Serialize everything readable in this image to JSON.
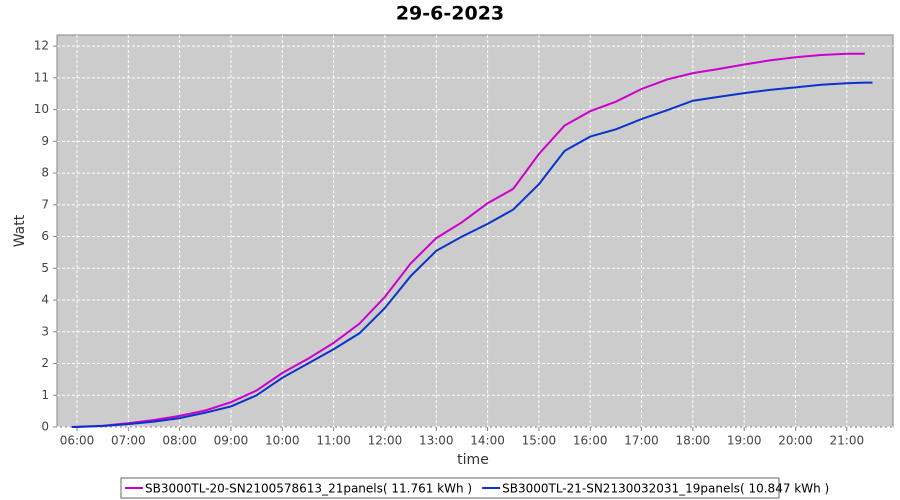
{
  "chart_data": {
    "type": "line",
    "title": "29-6-2023",
    "x_label": "time",
    "y_label": "Watt",
    "x": [
      5.9,
      6.0,
      6.5,
      7.0,
      7.5,
      8.0,
      8.5,
      9.0,
      9.5,
      10.0,
      10.5,
      11.0,
      11.5,
      12.0,
      12.5,
      13.0,
      13.5,
      14.0,
      14.5,
      15.0,
      15.5,
      16.0,
      16.5,
      17.0,
      17.5,
      18.0,
      18.5,
      19.0,
      19.5,
      20.0,
      20.5,
      21.0,
      21.35,
      21.5
    ],
    "series": [
      {
        "name": "SB3000TL-20-SN2100578613_21panels( 11.761 kWh )",
        "color": "#cc00cc",
        "values": [
          0,
          0.01,
          0.04,
          0.12,
          0.22,
          0.35,
          0.52,
          0.78,
          1.15,
          1.7,
          2.15,
          2.65,
          3.25,
          4.1,
          5.15,
          5.95,
          6.45,
          7.05,
          7.5,
          8.6,
          9.5,
          9.95,
          10.25,
          10.65,
          10.95,
          11.15,
          11.28,
          11.42,
          11.55,
          11.65,
          11.72,
          11.76,
          11.76,
          null
        ]
      },
      {
        "name": "SB3000TL-21-SN2130032031_19panels( 10.847 kWh )",
        "color": "#0a33cc",
        "values": [
          0,
          0,
          0.03,
          0.09,
          0.17,
          0.28,
          0.45,
          0.65,
          1.0,
          1.55,
          2.0,
          2.45,
          2.95,
          3.75,
          4.75,
          5.55,
          6.0,
          6.4,
          6.85,
          7.65,
          8.7,
          9.15,
          9.38,
          9.7,
          9.98,
          10.28,
          10.4,
          10.52,
          10.62,
          10.7,
          10.78,
          10.83,
          10.85,
          10.85
        ]
      }
    ],
    "xlim": [
      5.61,
      21.9
    ],
    "xticks": [
      {
        "value": 6,
        "label": "06:00"
      },
      {
        "value": 7,
        "label": "07:00"
      },
      {
        "value": 8,
        "label": "08:00"
      },
      {
        "value": 9,
        "label": "09:00"
      },
      {
        "value": 10,
        "label": "10:00"
      },
      {
        "value": 11,
        "label": "11:00"
      },
      {
        "value": 12,
        "label": "12:00"
      },
      {
        "value": 13,
        "label": "13:00"
      },
      {
        "value": 14,
        "label": "14:00"
      },
      {
        "value": 15,
        "label": "15:00"
      },
      {
        "value": 16,
        "label": "16:00"
      },
      {
        "value": 17,
        "label": "17:00"
      },
      {
        "value": 18,
        "label": "18:00"
      },
      {
        "value": 19,
        "label": "19:00"
      },
      {
        "value": 20,
        "label": "20:00"
      },
      {
        "value": 21,
        "label": "21:00"
      }
    ],
    "ylim": [
      0,
      12.35
    ],
    "yticks": [
      0,
      1,
      2,
      3,
      4,
      5,
      6,
      7,
      8,
      9,
      10,
      11,
      12
    ],
    "grid": true,
    "legend": "bottom"
  }
}
